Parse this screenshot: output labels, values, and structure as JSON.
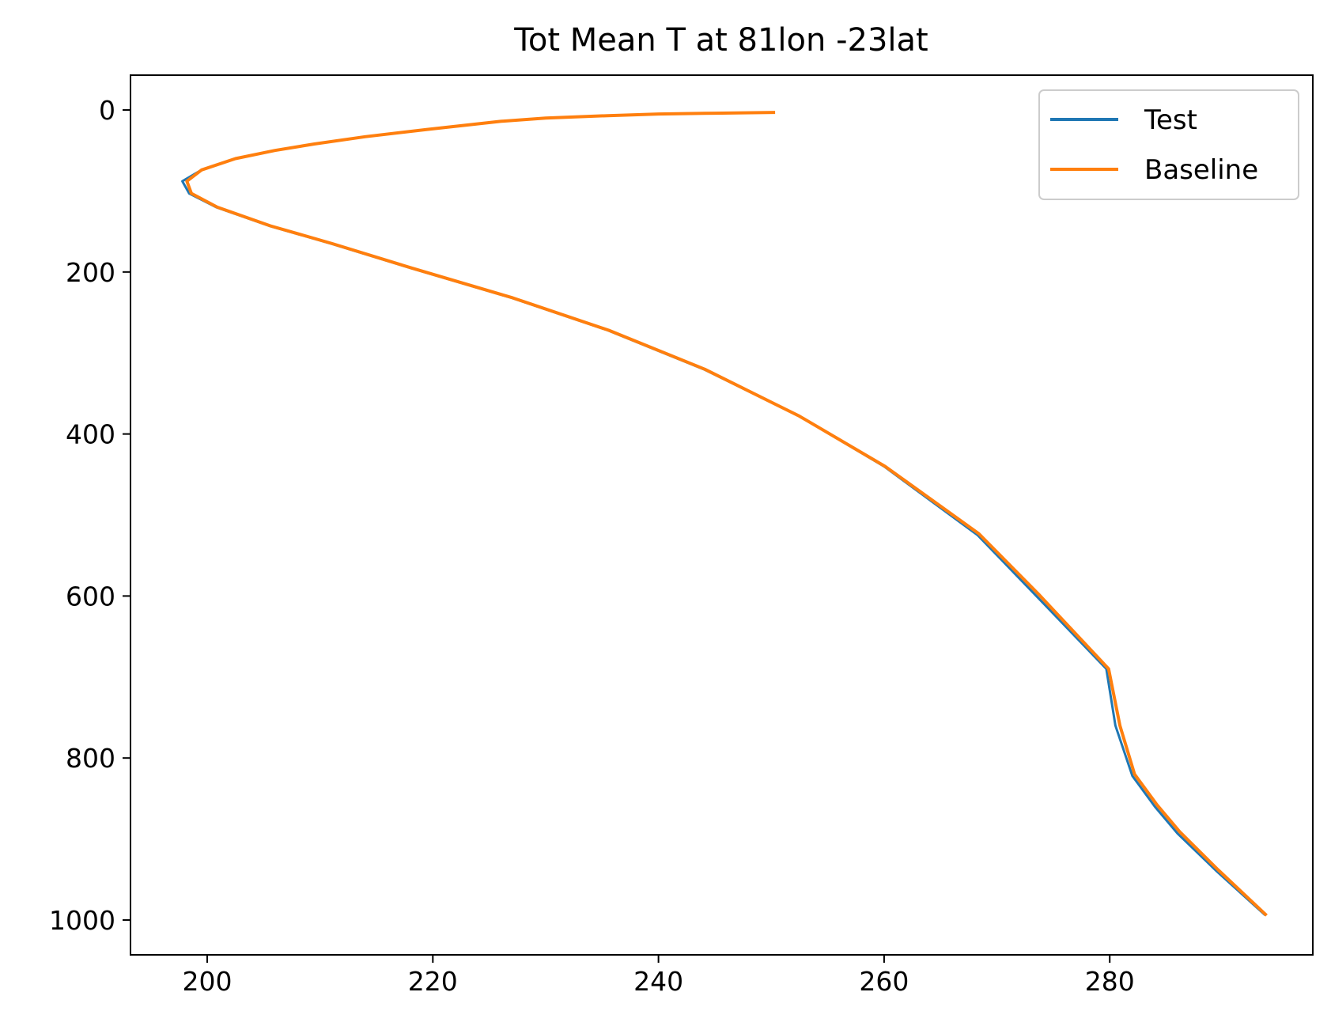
{
  "chart_data": {
    "type": "line",
    "title": "Tot Mean T at 81lon -23lat",
    "xlabel": "",
    "ylabel": "",
    "xlim": [
      193.2,
      298.0
    ],
    "ylim": [
      1043,
      -43
    ],
    "y_inverted": true,
    "grid": false,
    "legend_position": "top-right",
    "x_ticks": [
      200,
      220,
      240,
      260,
      280
    ],
    "y_ticks": [
      0,
      200,
      400,
      600,
      800,
      1000
    ],
    "series": [
      {
        "name": "Test",
        "color": "#1f77b4",
        "points": [
          [
            250.2,
            3
          ],
          [
            245.0,
            4
          ],
          [
            240.0,
            5
          ],
          [
            235.5,
            7
          ],
          [
            230.0,
            10
          ],
          [
            226.0,
            14
          ],
          [
            219.5,
            24
          ],
          [
            214.0,
            33
          ],
          [
            209.5,
            42
          ],
          [
            206.0,
            50
          ],
          [
            202.5,
            60
          ],
          [
            199.5,
            74
          ],
          [
            197.8,
            88
          ],
          [
            198.4,
            103
          ],
          [
            200.8,
            120
          ],
          [
            205.5,
            143
          ],
          [
            211.0,
            165
          ],
          [
            218.0,
            195
          ],
          [
            227.0,
            232
          ],
          [
            235.5,
            272
          ],
          [
            244.0,
            320
          ],
          [
            252.5,
            378
          ],
          [
            260.0,
            440
          ],
          [
            268.3,
            525
          ],
          [
            273.5,
            600
          ],
          [
            279.7,
            690
          ],
          [
            280.5,
            760
          ],
          [
            282.0,
            822
          ],
          [
            284.0,
            860
          ],
          [
            286.0,
            893
          ],
          [
            289.5,
            940
          ],
          [
            293.7,
            993
          ]
        ]
      },
      {
        "name": "Baseline",
        "color": "#ff7f0e",
        "points": [
          [
            250.2,
            3
          ],
          [
            245.0,
            4
          ],
          [
            240.0,
            5
          ],
          [
            235.5,
            7
          ],
          [
            230.0,
            10
          ],
          [
            226.0,
            14
          ],
          [
            219.5,
            24
          ],
          [
            214.0,
            33
          ],
          [
            209.5,
            42
          ],
          [
            206.0,
            50
          ],
          [
            202.5,
            60
          ],
          [
            199.5,
            74
          ],
          [
            198.2,
            88
          ],
          [
            198.6,
            103
          ],
          [
            200.9,
            120
          ],
          [
            205.6,
            143
          ],
          [
            211.1,
            165
          ],
          [
            218.1,
            195
          ],
          [
            227.1,
            232
          ],
          [
            235.6,
            272
          ],
          [
            244.1,
            320
          ],
          [
            252.5,
            378
          ],
          [
            260.1,
            440
          ],
          [
            268.4,
            523
          ],
          [
            273.7,
            598
          ],
          [
            279.9,
            690
          ],
          [
            280.9,
            760
          ],
          [
            282.2,
            820
          ],
          [
            284.2,
            858
          ],
          [
            286.2,
            891
          ],
          [
            289.6,
            938
          ],
          [
            293.8,
            993
          ]
        ]
      }
    ]
  }
}
